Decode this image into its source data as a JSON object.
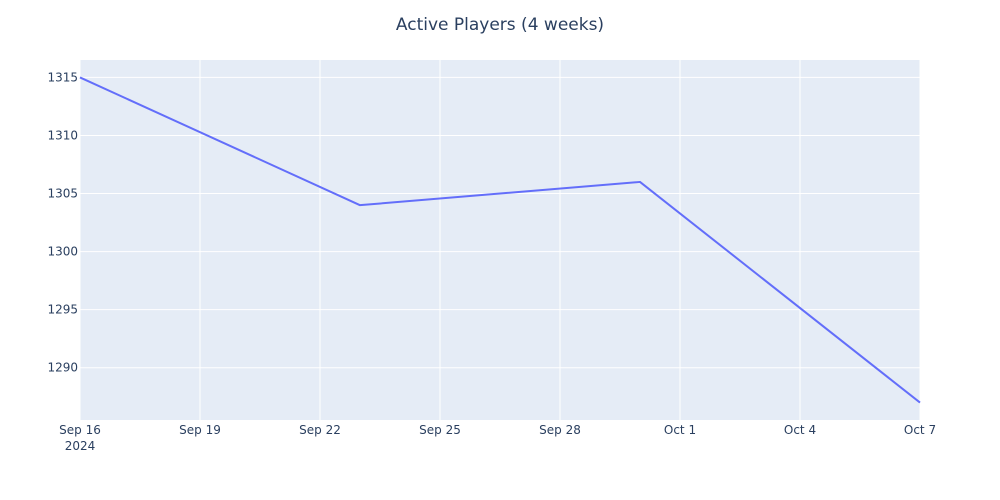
{
  "chart_data": {
    "type": "line",
    "title": "Active Players (4 weeks)",
    "xlabel": "",
    "ylabel": "",
    "x": [
      "2024-09-16",
      "2024-09-23",
      "2024-09-30",
      "2024-10-07"
    ],
    "series": [
      {
        "values": [
          1315,
          1304,
          1306,
          1287
        ]
      }
    ],
    "x_ticks": [
      {
        "date": "2024-09-16",
        "label": "Sep 16",
        "sublabel": "2024"
      },
      {
        "date": "2024-09-19",
        "label": "Sep 19"
      },
      {
        "date": "2024-09-22",
        "label": "Sep 22"
      },
      {
        "date": "2024-09-25",
        "label": "Sep 25"
      },
      {
        "date": "2024-09-28",
        "label": "Sep 28"
      },
      {
        "date": "2024-10-01",
        "label": "Oct 1"
      },
      {
        "date": "2024-10-04",
        "label": "Oct 4"
      },
      {
        "date": "2024-10-07",
        "label": "Oct 7"
      }
    ],
    "y_ticks": [
      1290,
      1295,
      1300,
      1305,
      1310,
      1315
    ],
    "xlim": [
      "2024-09-16",
      "2024-10-07"
    ],
    "ylim": [
      1285.5,
      1316.5
    ],
    "grid": true,
    "colors": {
      "line": "#636efa",
      "plot_bg": "#e5ecf6",
      "grid": "#ffffff",
      "text": "#2a3f5f"
    }
  }
}
